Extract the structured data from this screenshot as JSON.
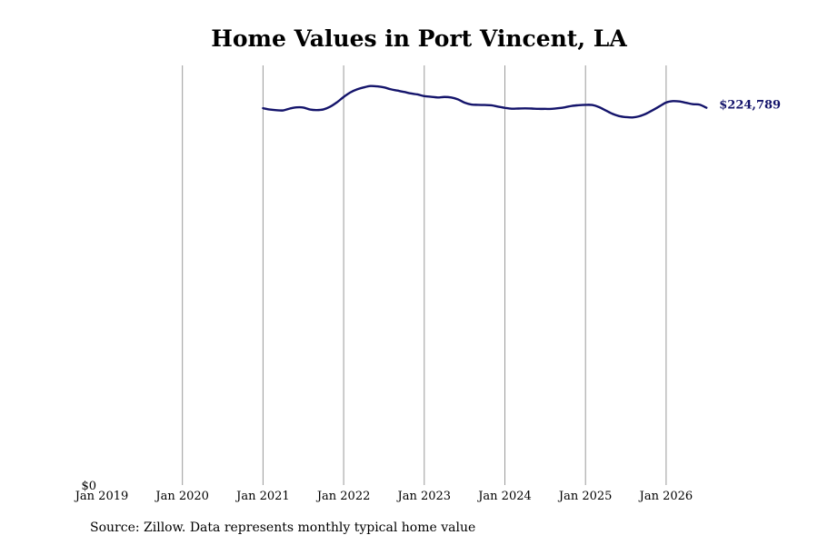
{
  "title": "Home Values in Port Vincent, LA",
  "source": "Source: Zillow. Data represents monthly typical home value",
  "chart_data": {
    "type": "line",
    "title": "Home Values in Port Vincent, LA",
    "xlabel": "",
    "ylabel": "",
    "x_ticks": [
      "Jan 2019",
      "Jan 2020",
      "Jan 2021",
      "Jan 2022",
      "Jan 2023",
      "Jan 2024",
      "Jan 2025",
      "Jan 2026"
    ],
    "y_ticks": [
      "$0"
    ],
    "xlim": [
      "2019-01",
      "2026-08"
    ],
    "ylim": [
      0,
      250000
    ],
    "grid": "vertical",
    "line_color": "#14146b",
    "end_label": "$224,789",
    "series": [
      {
        "points": [
          [
            "2021-01",
            224500
          ],
          [
            "2021-02",
            223700
          ],
          [
            "2021-03",
            223300
          ],
          [
            "2021-04",
            223200
          ],
          [
            "2021-05",
            224300
          ],
          [
            "2021-06",
            225000
          ],
          [
            "2021-07",
            224900
          ],
          [
            "2021-08",
            223700
          ],
          [
            "2021-09",
            223400
          ],
          [
            "2021-10",
            223800
          ],
          [
            "2021-11",
            225400
          ],
          [
            "2021-12",
            228000
          ],
          [
            "2022-01",
            231200
          ],
          [
            "2022-02",
            233900
          ],
          [
            "2022-03",
            235700
          ],
          [
            "2022-04",
            236900
          ],
          [
            "2022-05",
            237700
          ],
          [
            "2022-06",
            237500
          ],
          [
            "2022-07",
            236900
          ],
          [
            "2022-08",
            235800
          ],
          [
            "2022-09",
            235000
          ],
          [
            "2022-10",
            234200
          ],
          [
            "2022-11",
            233300
          ],
          [
            "2022-12",
            232700
          ],
          [
            "2023-01",
            231700
          ],
          [
            "2023-02",
            231300
          ],
          [
            "2023-03",
            230900
          ],
          [
            "2023-04",
            231200
          ],
          [
            "2023-05",
            230900
          ],
          [
            "2023-06",
            229800
          ],
          [
            "2023-07",
            227800
          ],
          [
            "2023-08",
            226700
          ],
          [
            "2023-09",
            226500
          ],
          [
            "2023-10",
            226400
          ],
          [
            "2023-11",
            226200
          ],
          [
            "2023-12",
            225400
          ],
          [
            "2024-01",
            224700
          ],
          [
            "2024-02",
            224200
          ],
          [
            "2024-03",
            224300
          ],
          [
            "2024-04",
            224400
          ],
          [
            "2024-05",
            224300
          ],
          [
            "2024-06",
            224100
          ],
          [
            "2024-07",
            224100
          ],
          [
            "2024-08",
            224100
          ],
          [
            "2024-09",
            224500
          ],
          [
            "2024-10",
            225100
          ],
          [
            "2024-11",
            225900
          ],
          [
            "2024-12",
            226300
          ],
          [
            "2025-01",
            226500
          ],
          [
            "2025-02",
            226400
          ],
          [
            "2025-03",
            225200
          ],
          [
            "2025-04",
            223200
          ],
          [
            "2025-05",
            221200
          ],
          [
            "2025-06",
            219800
          ],
          [
            "2025-07",
            219200
          ],
          [
            "2025-08",
            219000
          ],
          [
            "2025-09",
            219700
          ],
          [
            "2025-10",
            221200
          ],
          [
            "2025-11",
            223300
          ],
          [
            "2025-12",
            225600
          ],
          [
            "2026-01",
            227900
          ],
          [
            "2026-02",
            228700
          ],
          [
            "2026-03",
            228500
          ],
          [
            "2026-04",
            227700
          ],
          [
            "2026-05",
            226900
          ],
          [
            "2026-06",
            226600
          ],
          [
            "2026-07",
            224789
          ]
        ]
      }
    ]
  }
}
